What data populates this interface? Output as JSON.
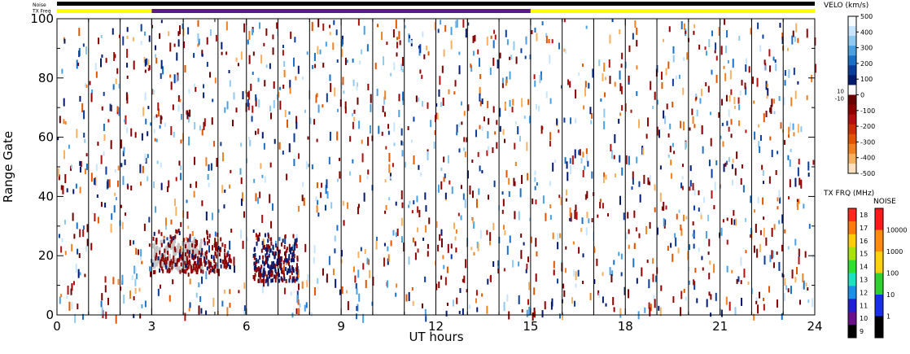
{
  "header": {
    "noise_label": "Noise",
    "txfrq_label": "TX Freq"
  },
  "chart_data": {
    "type": "scatter",
    "title": "",
    "xlabel": "UT hours",
    "ylabel": "Range Gate",
    "xlim": [
      0,
      24
    ],
    "ylim": [
      0,
      100
    ],
    "x_ticks": [
      0,
      3,
      6,
      9,
      12,
      15,
      18,
      21,
      24
    ],
    "y_ticks": [
      0,
      20,
      40,
      60,
      80,
      100
    ],
    "scan_boundaries_ut": [
      1,
      2,
      3,
      4,
      5.1,
      6,
      7,
      8,
      9,
      10,
      11,
      12,
      13,
      14,
      15,
      16,
      17,
      18,
      19,
      20,
      21,
      22,
      23
    ],
    "noise_bar": [
      {
        "from": 0,
        "to": 24,
        "color": "#000000"
      }
    ],
    "txfrq_bar": [
      {
        "from": 0,
        "to": 3,
        "color": "#ffff00"
      },
      {
        "from": 3,
        "to": 15,
        "color": "#5a1a8c"
      },
      {
        "from": 15,
        "to": 24,
        "color": "#ffff00"
      }
    ],
    "echo_clusters": [
      {
        "ut_range": [
          3.0,
          5.5
        ],
        "gate_range": [
          15,
          30
        ],
        "velocity": "negative, ground scatter present"
      },
      {
        "ut_range": [
          6.2,
          7.6
        ],
        "gate_range": [
          12,
          30
        ],
        "velocity": "positive and negative"
      }
    ],
    "velocity_scale": {
      "title": "VELO (km/s)",
      "ticks": [
        "500",
        "400",
        "300",
        "200",
        "100",
        "0",
        "-100",
        "-200",
        "-300",
        "-400",
        "-500"
      ],
      "gs_labels": [
        "10",
        "-10"
      ],
      "colors": [
        "#f8fcff",
        "#c8e4ff",
        "#8fc8f0",
        "#4aa0e0",
        "#1a70c8",
        "#0a3c9c",
        "#041a6e",
        "#ffffff",
        "#6a0000",
        "#8c0000",
        "#b01010",
        "#c83000",
        "#e05500",
        "#f08020",
        "#f8b060",
        "#fde0c0"
      ]
    },
    "txfrq_scale": {
      "title": "TX FRQ (MHz)",
      "ticks": [
        "18",
        "17",
        "16",
        "15",
        "14",
        "13",
        "12",
        "11",
        "10",
        "9"
      ],
      "colors": [
        "#ff2a1a",
        "#ff7a10",
        "#ffcc10",
        "#a8e010",
        "#30e030",
        "#20e0c0",
        "#1a90e8",
        "#2020d0",
        "#6a108c",
        "#000000"
      ]
    },
    "noise_scale": {
      "title": "NOISE",
      "ticks": [
        "10000",
        "1000",
        "100",
        "10",
        "1"
      ],
      "colors": [
        "#ff1a1a",
        "#ff8c10",
        "#ffd010",
        "#30d030",
        "#1a30e8",
        "#000000"
      ]
    }
  }
}
